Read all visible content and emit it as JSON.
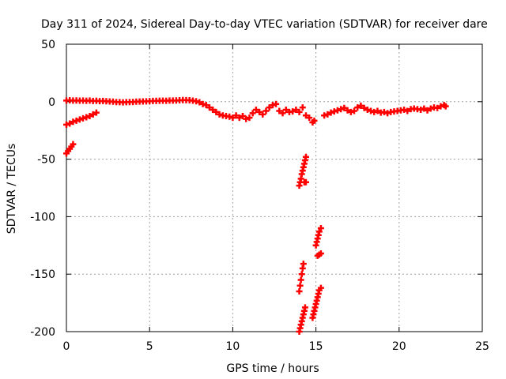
{
  "chart_data": {
    "type": "scatter",
    "title": "Day 311 of 2024, Sidereal Day-to-day VTEC variation (SDTVAR) for receiver dare",
    "xlabel": "GPS time / hours",
    "ylabel": "SDTVAR / TECUs",
    "xlim": [
      0,
      25
    ],
    "ylim": [
      -200,
      50
    ],
    "xticks": [
      0,
      5,
      10,
      15,
      20,
      25
    ],
    "yticks": [
      50,
      0,
      -50,
      -100,
      -150,
      -200
    ],
    "grid": true,
    "marker": "+",
    "series": [
      {
        "name": "SDTVAR",
        "color": "#ff0000",
        "points": [
          [
            0.0,
            1.0
          ],
          [
            0.2,
            1.2
          ],
          [
            0.4,
            1.0
          ],
          [
            0.6,
            1.1
          ],
          [
            0.8,
            0.9
          ],
          [
            1.0,
            1.0
          ],
          [
            1.2,
            0.8
          ],
          [
            1.4,
            1.0
          ],
          [
            1.6,
            0.6
          ],
          [
            1.8,
            0.8
          ],
          [
            2.0,
            0.5
          ],
          [
            2.2,
            0.6
          ],
          [
            2.4,
            0.4
          ],
          [
            2.6,
            0.2
          ],
          [
            2.8,
            0.0
          ],
          [
            3.0,
            -0.3
          ],
          [
            3.2,
            -0.4
          ],
          [
            3.4,
            -0.6
          ],
          [
            3.6,
            -0.4
          ],
          [
            3.8,
            -0.3
          ],
          [
            4.0,
            -0.2
          ],
          [
            4.2,
            0.0
          ],
          [
            4.4,
            0.1
          ],
          [
            4.6,
            0.2
          ],
          [
            4.8,
            0.3
          ],
          [
            5.0,
            0.5
          ],
          [
            5.2,
            0.6
          ],
          [
            5.4,
            0.7
          ],
          [
            5.6,
            0.8
          ],
          [
            5.8,
            0.9
          ],
          [
            6.0,
            0.8
          ],
          [
            6.2,
            1.0
          ],
          [
            6.4,
            1.0
          ],
          [
            6.6,
            1.1
          ],
          [
            6.8,
            1.2
          ],
          [
            7.0,
            1.4
          ],
          [
            7.2,
            1.3
          ],
          [
            7.4,
            1.2
          ],
          [
            7.6,
            0.9
          ],
          [
            7.8,
            0.4
          ],
          [
            8.0,
            -0.5
          ],
          [
            8.2,
            -2.0
          ],
          [
            8.4,
            -3.0
          ],
          [
            8.6,
            -5.0
          ],
          [
            8.8,
            -7.0
          ],
          [
            9.0,
            -9.0
          ],
          [
            9.2,
            -11.0
          ],
          [
            9.4,
            -12.0
          ],
          [
            9.6,
            -12.5
          ],
          [
            9.8,
            -13.0
          ],
          [
            10.0,
            -14.0
          ],
          [
            10.2,
            -12.0
          ],
          [
            10.4,
            -14.0
          ],
          [
            10.6,
            -12.5
          ],
          [
            10.8,
            -15.0
          ],
          [
            11.0,
            -14.0
          ],
          [
            11.2,
            -10.0
          ],
          [
            11.4,
            -7.0
          ],
          [
            11.6,
            -9.0
          ],
          [
            11.8,
            -11.0
          ],
          [
            12.0,
            -8.0
          ],
          [
            12.2,
            -5.0
          ],
          [
            12.4,
            -3.0
          ],
          [
            12.6,
            -2.0
          ],
          [
            12.8,
            -8.0
          ],
          [
            13.0,
            -10.0
          ],
          [
            13.2,
            -7.0
          ],
          [
            13.4,
            -9.0
          ],
          [
            13.6,
            -8.5
          ],
          [
            13.8,
            -7.0
          ],
          [
            14.0,
            -9.0
          ],
          [
            14.2,
            -5.0
          ],
          [
            14.4,
            -12.0
          ],
          [
            14.6,
            -14.0
          ],
          [
            0.0,
            -20.0
          ],
          [
            0.2,
            -19.0
          ],
          [
            0.4,
            -17.5
          ],
          [
            0.6,
            -16.5
          ],
          [
            0.8,
            -15.5
          ],
          [
            1.0,
            -14.5
          ],
          [
            1.2,
            -13.5
          ],
          [
            1.4,
            -12.5
          ],
          [
            1.6,
            -11.0
          ],
          [
            1.8,
            -9.5
          ],
          [
            0.0,
            -45.0
          ],
          [
            0.1,
            -43.0
          ],
          [
            0.2,
            -41.0
          ],
          [
            0.3,
            -39.0
          ],
          [
            0.4,
            -37.0
          ],
          [
            14.0,
            -73.0
          ],
          [
            14.05,
            -70.0
          ],
          [
            14.1,
            -67.0
          ],
          [
            14.15,
            -63.0
          ],
          [
            14.2,
            -60.0
          ],
          [
            14.25,
            -57.0
          ],
          [
            14.3,
            -54.0
          ],
          [
            14.35,
            -51.0
          ],
          [
            14.4,
            -48.0
          ],
          [
            14.3,
            -70.0
          ],
          [
            14.4,
            -70.0
          ],
          [
            14.0,
            -165.0
          ],
          [
            14.05,
            -160.0
          ],
          [
            14.1,
            -155.0
          ],
          [
            14.15,
            -150.0
          ],
          [
            14.2,
            -145.0
          ],
          [
            14.25,
            -141.0
          ],
          [
            14.0,
            -200.0
          ],
          [
            14.05,
            -197.0
          ],
          [
            14.1,
            -194.0
          ],
          [
            14.15,
            -191.0
          ],
          [
            14.2,
            -188.0
          ],
          [
            14.25,
            -185.0
          ],
          [
            14.3,
            -182.0
          ],
          [
            14.35,
            -179.0
          ],
          [
            14.8,
            -18.0
          ],
          [
            14.9,
            -16.5
          ],
          [
            15.0,
            -125.0
          ],
          [
            15.05,
            -122.0
          ],
          [
            15.1,
            -119.0
          ],
          [
            15.15,
            -116.0
          ],
          [
            15.2,
            -113.0
          ],
          [
            15.3,
            -110.0
          ],
          [
            15.1,
            -134.0
          ],
          [
            15.2,
            -133.0
          ],
          [
            15.3,
            -132.0
          ],
          [
            14.8,
            -188.0
          ],
          [
            14.85,
            -185.0
          ],
          [
            14.9,
            -182.0
          ],
          [
            14.95,
            -179.0
          ],
          [
            15.0,
            -176.0
          ],
          [
            15.05,
            -173.0
          ],
          [
            15.1,
            -170.0
          ],
          [
            15.15,
            -167.0
          ],
          [
            15.2,
            -164.0
          ],
          [
            15.3,
            -162.0
          ],
          [
            15.5,
            -12.0
          ],
          [
            15.7,
            -11.0
          ],
          [
            15.9,
            -9.5
          ],
          [
            16.1,
            -8.5
          ],
          [
            16.3,
            -7.5
          ],
          [
            16.5,
            -6.5
          ],
          [
            16.7,
            -5.5
          ],
          [
            16.9,
            -7.5
          ],
          [
            17.1,
            -9.0
          ],
          [
            17.3,
            -8.0
          ],
          [
            17.5,
            -5.0
          ],
          [
            17.7,
            -3.5
          ],
          [
            17.9,
            -5.5
          ],
          [
            18.1,
            -7.0
          ],
          [
            18.3,
            -8.0
          ],
          [
            18.5,
            -9.0
          ],
          [
            18.7,
            -8.0
          ],
          [
            18.9,
            -9.5
          ],
          [
            19.1,
            -9.0
          ],
          [
            19.3,
            -10.0
          ],
          [
            19.5,
            -9.0
          ],
          [
            19.7,
            -8.5
          ],
          [
            19.9,
            -8.0
          ],
          [
            20.1,
            -7.5
          ],
          [
            20.3,
            -7.0
          ],
          [
            20.5,
            -8.0
          ],
          [
            20.7,
            -6.5
          ],
          [
            20.9,
            -6.0
          ],
          [
            21.1,
            -6.5
          ],
          [
            21.3,
            -7.0
          ],
          [
            21.5,
            -6.0
          ],
          [
            21.7,
            -7.5
          ],
          [
            21.9,
            -6.0
          ],
          [
            22.1,
            -5.0
          ],
          [
            22.3,
            -5.5
          ],
          [
            22.5,
            -4.0
          ],
          [
            22.7,
            -3.0
          ],
          [
            22.8,
            -4.0
          ]
        ]
      }
    ]
  }
}
